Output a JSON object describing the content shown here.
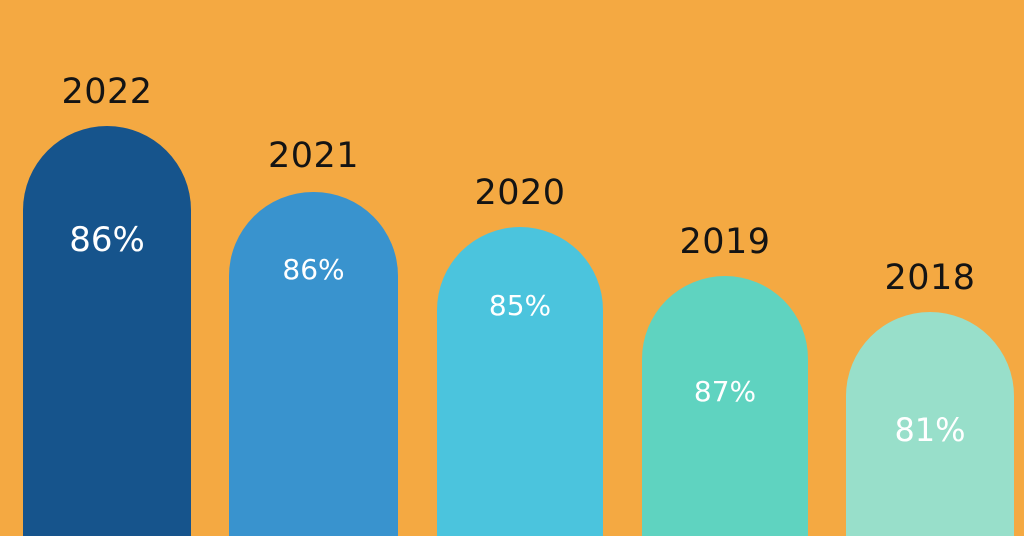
{
  "chart_data": {
    "type": "bar",
    "title": "",
    "xlabel": "",
    "ylabel": "",
    "orientation": "vertical",
    "legend": "none",
    "grid": false,
    "background_color": "#F4A942",
    "year_label_color": "#141414",
    "value_label_color": "#FFFFFF",
    "style_note": "decorative infographic: dome-topped bars sorted left-to-right from most recent year; bar height reflects year recency, not value",
    "categories": [
      "2022",
      "2021",
      "2020",
      "2019",
      "2018"
    ],
    "values": [
      86,
      86,
      85,
      87,
      81
    ],
    "bars": [
      {
        "year": "2022",
        "value": 86,
        "value_label": "86%",
        "color": "#16548C"
      },
      {
        "year": "2021",
        "value": 86,
        "value_label": "86%",
        "color": "#3993CE"
      },
      {
        "year": "2020",
        "value": 85,
        "value_label": "85%",
        "color": "#4BC4DD"
      },
      {
        "year": "2019",
        "value": 87,
        "value_label": "87%",
        "color": "#5FD3C0"
      },
      {
        "year": "2018",
        "value": 81,
        "value_label": "81%",
        "color": "#98DFCA"
      }
    ]
  }
}
